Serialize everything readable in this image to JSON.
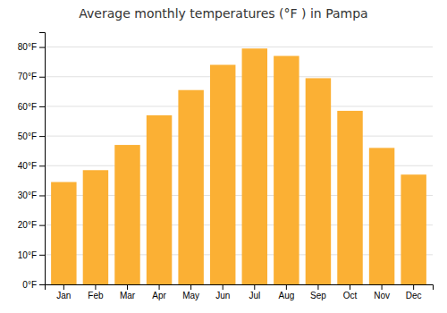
{
  "chart_data": {
    "type": "bar",
    "title": "Average monthly temperatures (°F ) in Pampa",
    "categories": [
      "Jan",
      "Feb",
      "Mar",
      "Apr",
      "May",
      "Jun",
      "Jul",
      "Aug",
      "Sep",
      "Oct",
      "Nov",
      "Dec"
    ],
    "values": [
      34.5,
      38.5,
      47,
      57,
      65.5,
      74,
      79.5,
      77,
      69.5,
      58.5,
      46,
      37
    ],
    "color": "#FBB034",
    "ylim": [
      0,
      85
    ],
    "yticks": [
      {
        "value": 0,
        "label": "0°F"
      },
      {
        "value": 10,
        "label": "10°F"
      },
      {
        "value": 20,
        "label": "20°F"
      },
      {
        "value": 30,
        "label": "30°F"
      },
      {
        "value": 40,
        "label": "40°F"
      },
      {
        "value": 50,
        "label": "50°F"
      },
      {
        "value": 60,
        "label": "60°F"
      },
      {
        "value": 70,
        "label": "70°F"
      },
      {
        "value": 80,
        "label": "80°F"
      }
    ],
    "grid": true
  }
}
